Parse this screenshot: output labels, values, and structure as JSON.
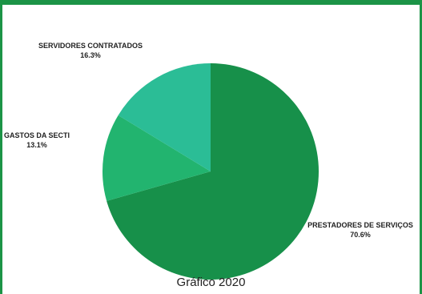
{
  "chart_data": {
    "type": "pie",
    "slices": [
      {
        "label": "PRESTADORES DE SERVIÇOS",
        "percent_text": "70.6%",
        "value": 70.6,
        "color": "#17904a"
      },
      {
        "label": "GASTOS DA SECTI",
        "percent_text": "13.1%",
        "value": 13.1,
        "color": "#22b46f"
      },
      {
        "label": "SERVIDORES CONTRATADOS",
        "percent_text": "16.3%",
        "value": 16.3,
        "color": "#2bbd96"
      }
    ],
    "legend": "none",
    "labels": "outside"
  },
  "caption": "Gráfico 2020",
  "colors": {
    "frame": "#1c9447",
    "text": "#222222"
  }
}
